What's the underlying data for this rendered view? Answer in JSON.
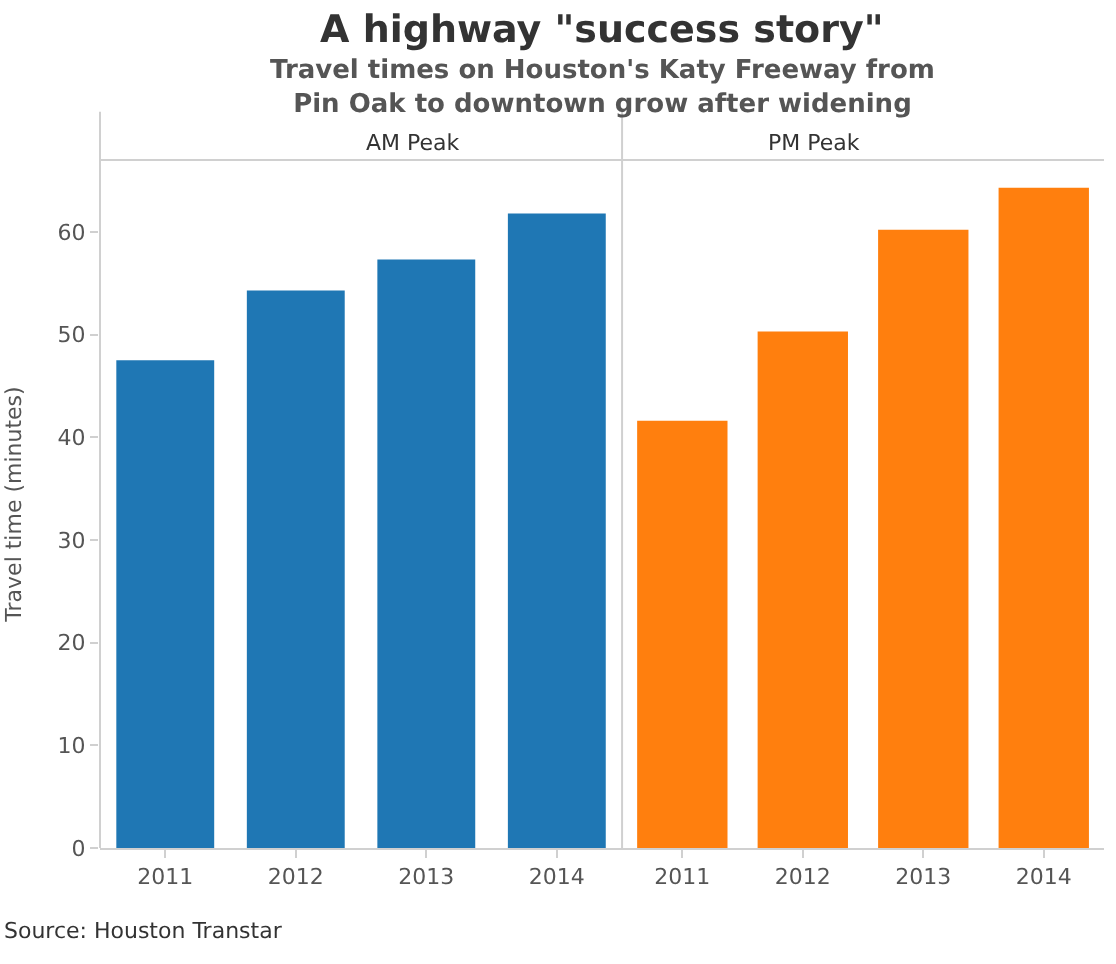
{
  "chart_data": [
    {
      "type": "bar",
      "title": "A highway \"success story\"",
      "subtitle": "Travel times on Houston's Katy Freeway from\nPin Oak to downtown grow after widening",
      "ylabel": "Travel time (minutes)",
      "categories": [
        "2011",
        "2012",
        "2013",
        "2014"
      ],
      "values": [
        47.5,
        54.3,
        57.3,
        61.8
      ],
      "color": "#1f77b4",
      "ylim": [
        0,
        67
      ],
      "yticks": [
        0,
        10,
        20,
        30,
        40,
        50,
        60
      ],
      "annotations": [
        "AM Peak",
        "Source: Houston Transtar"
      ]
    },
    {
      "type": "bar",
      "categories": [
        "2011",
        "2012",
        "2013",
        "2014"
      ],
      "values": [
        41.6,
        50.3,
        60.2,
        64.3
      ],
      "color": "#ff7f0e",
      "ylim": [
        0,
        67
      ],
      "yticks": [
        0,
        10,
        20,
        30,
        40,
        50,
        60
      ],
      "tick_labels": "x",
      "annotations": [
        "PM Peak"
      ]
    }
  ]
}
